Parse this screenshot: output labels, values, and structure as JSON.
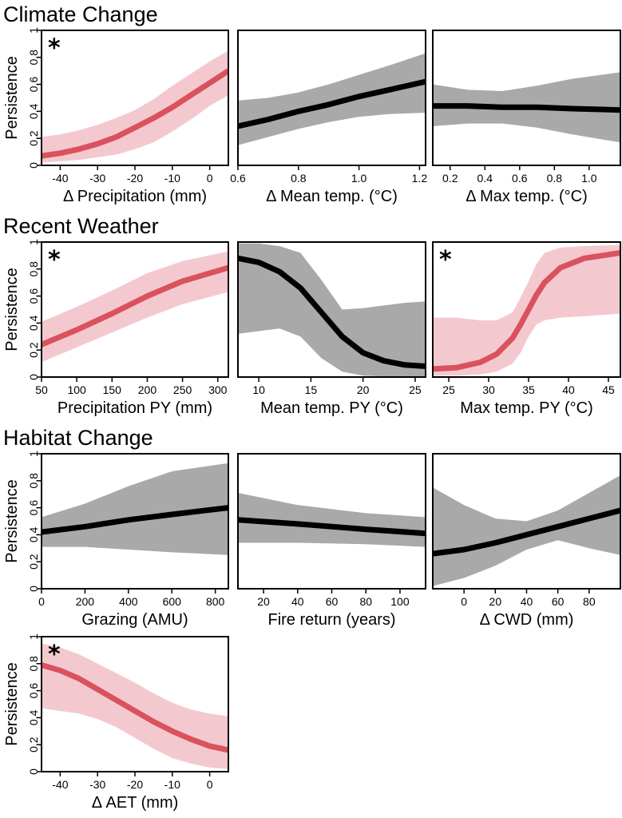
{
  "colors": {
    "significant": "#d9525e",
    "significant_band": "#f3c9cf",
    "neutral": "#000000",
    "neutral_band": "#a9a9a9"
  },
  "sections": [
    {
      "title": "Climate Change"
    },
    {
      "title": "Recent Weather"
    },
    {
      "title": "Habitat Change"
    }
  ],
  "chart_data": [
    {
      "type": "line",
      "xlabel": "Δ Precipitation (mm)",
      "ylabel": "Persistence",
      "significant": true,
      "marker": "*",
      "xlim": [
        -45,
        5
      ],
      "ylim": [
        0,
        1
      ],
      "xticks": [
        -40,
        -30,
        -20,
        -10,
        0
      ],
      "xtick_labels": [
        "-40",
        "-30",
        "-20",
        "-10",
        "0"
      ],
      "yticks": [
        0,
        0.2,
        0.4,
        0.6,
        0.8,
        1
      ],
      "ytick_labels": [
        "0",
        "0.2",
        "0.4",
        "0.6",
        "0.8",
        "1"
      ],
      "x": [
        -45,
        -40,
        -35,
        -30,
        -25,
        -20,
        -15,
        -10,
        -5,
        0,
        5
      ],
      "fit": [
        0.07,
        0.09,
        0.12,
        0.16,
        0.21,
        0.28,
        0.35,
        0.43,
        0.52,
        0.61,
        0.7
      ],
      "lower": [
        0.02,
        0.03,
        0.04,
        0.06,
        0.08,
        0.12,
        0.17,
        0.25,
        0.34,
        0.44,
        0.52
      ],
      "upper": [
        0.21,
        0.23,
        0.26,
        0.3,
        0.35,
        0.41,
        0.49,
        0.59,
        0.68,
        0.77,
        0.85
      ]
    },
    {
      "type": "line",
      "xlabel": "Δ Mean temp. (°C)",
      "ylabel": "",
      "significant": false,
      "marker": "",
      "xlim": [
        0.6,
        1.22
      ],
      "ylim": [
        0,
        1
      ],
      "xticks": [
        0.6,
        0.8,
        1.0,
        1.2
      ],
      "xtick_labels": [
        "0.6",
        "0.8",
        "1.0",
        "1.2"
      ],
      "yticks": [],
      "ytick_labels": [],
      "x": [
        0.6,
        0.7,
        0.8,
        0.9,
        1.0,
        1.1,
        1.22
      ],
      "fit": [
        0.29,
        0.34,
        0.4,
        0.45,
        0.51,
        0.56,
        0.62
      ],
      "lower": [
        0.15,
        0.21,
        0.27,
        0.32,
        0.36,
        0.38,
        0.39
      ],
      "upper": [
        0.48,
        0.5,
        0.54,
        0.6,
        0.67,
        0.74,
        0.83
      ]
    },
    {
      "type": "line",
      "xlabel": "Δ Max temp. (°C)",
      "ylabel": "",
      "significant": false,
      "marker": "",
      "xlim": [
        0.1,
        1.18
      ],
      "ylim": [
        0,
        1
      ],
      "xticks": [
        0.2,
        0.4,
        0.6,
        0.8,
        1.0
      ],
      "xtick_labels": [
        "0.2",
        "0.4",
        "0.6",
        "0.8",
        "1.0"
      ],
      "yticks": [],
      "ytick_labels": [],
      "x": [
        0.1,
        0.3,
        0.5,
        0.7,
        0.9,
        1.18
      ],
      "fit": [
        0.44,
        0.44,
        0.43,
        0.43,
        0.42,
        0.41
      ],
      "lower": [
        0.29,
        0.31,
        0.31,
        0.28,
        0.23,
        0.17
      ],
      "upper": [
        0.6,
        0.56,
        0.55,
        0.59,
        0.64,
        0.69
      ]
    },
    {
      "type": "line",
      "xlabel": "Precipitation PY (mm)",
      "ylabel": "Persistence",
      "significant": true,
      "marker": "*",
      "xlim": [
        50,
        315
      ],
      "ylim": [
        0,
        1
      ],
      "xticks": [
        50,
        100,
        150,
        200,
        250,
        300
      ],
      "xtick_labels": [
        "50",
        "100",
        "150",
        "200",
        "250",
        "300"
      ],
      "yticks": [
        0,
        0.2,
        0.4,
        0.6,
        0.8,
        1
      ],
      "ytick_labels": [
        "0",
        "0.2",
        "0.4",
        "0.6",
        "0.8",
        "1"
      ],
      "x": [
        50,
        100,
        150,
        200,
        250,
        315
      ],
      "fit": [
        0.24,
        0.35,
        0.47,
        0.6,
        0.71,
        0.81
      ],
      "lower": [
        0.11,
        0.22,
        0.33,
        0.44,
        0.54,
        0.63
      ],
      "upper": [
        0.41,
        0.52,
        0.64,
        0.77,
        0.86,
        0.93
      ]
    },
    {
      "type": "line",
      "xlabel": "Mean temp. PY (°C)",
      "ylabel": "",
      "significant": false,
      "marker": "",
      "xlim": [
        8,
        26
      ],
      "ylim": [
        0,
        1
      ],
      "xticks": [
        10,
        15,
        20,
        25
      ],
      "xtick_labels": [
        "10",
        "15",
        "20",
        "25"
      ],
      "yticks": [],
      "ytick_labels": [],
      "x": [
        8,
        10,
        12,
        14,
        16,
        18,
        20,
        22,
        24,
        26
      ],
      "fit": [
        0.88,
        0.85,
        0.78,
        0.66,
        0.48,
        0.3,
        0.18,
        0.12,
        0.09,
        0.08
      ],
      "lower": [
        0.32,
        0.34,
        0.36,
        0.3,
        0.14,
        0.04,
        0.01,
        0.005,
        0.005,
        0.005
      ],
      "upper": [
        0.99,
        0.99,
        0.97,
        0.92,
        0.72,
        0.5,
        0.51,
        0.53,
        0.55,
        0.56
      ]
    },
    {
      "type": "line",
      "xlabel": "Max temp. PY (°C)",
      "ylabel": "",
      "significant": true,
      "marker": "*",
      "xlim": [
        23,
        46.5
      ],
      "ylim": [
        0,
        1
      ],
      "xticks": [
        25,
        30,
        35,
        40,
        45
      ],
      "xtick_labels": [
        "25",
        "30",
        "35",
        "40",
        "45"
      ],
      "yticks": [],
      "ytick_labels": [],
      "x": [
        23,
        26,
        29,
        31,
        33,
        34,
        35,
        36,
        37,
        39,
        42,
        46.5
      ],
      "fit": [
        0.06,
        0.07,
        0.11,
        0.17,
        0.29,
        0.39,
        0.5,
        0.61,
        0.7,
        0.81,
        0.88,
        0.92
      ],
      "lower": [
        0.01,
        0.01,
        0.02,
        0.04,
        0.1,
        0.18,
        0.3,
        0.39,
        0.42,
        0.44,
        0.45,
        0.47
      ],
      "upper": [
        0.44,
        0.44,
        0.42,
        0.42,
        0.48,
        0.59,
        0.71,
        0.84,
        0.92,
        0.96,
        0.97,
        0.98
      ]
    },
    {
      "type": "line",
      "xlabel": "Grazing (AMU)",
      "ylabel": "Persistence",
      "significant": false,
      "marker": "",
      "xlim": [
        0,
        860
      ],
      "ylim": [
        0,
        1
      ],
      "xticks": [
        0,
        200,
        400,
        600,
        800
      ],
      "xtick_labels": [
        "0",
        "200",
        "400",
        "600",
        "800"
      ],
      "yticks": [
        0,
        0.2,
        0.4,
        0.6,
        0.8,
        1
      ],
      "ytick_labels": [
        "0",
        "0.2",
        "0.4",
        "0.6",
        "0.8",
        "1"
      ],
      "x": [
        0,
        200,
        400,
        600,
        860
      ],
      "fit": [
        0.42,
        0.46,
        0.51,
        0.55,
        0.6
      ],
      "lower": [
        0.31,
        0.31,
        0.29,
        0.27,
        0.25
      ],
      "upper": [
        0.53,
        0.63,
        0.76,
        0.87,
        0.93
      ]
    },
    {
      "type": "line",
      "xlabel": "Fire return (years)",
      "ylabel": "",
      "significant": false,
      "marker": "",
      "xlim": [
        5,
        115
      ],
      "ylim": [
        0,
        1
      ],
      "xticks": [
        20,
        40,
        60,
        80,
        100
      ],
      "xtick_labels": [
        "20",
        "40",
        "60",
        "80",
        "100"
      ],
      "yticks": [],
      "ytick_labels": [],
      "x": [
        5,
        40,
        80,
        115
      ],
      "fit": [
        0.51,
        0.48,
        0.44,
        0.41
      ],
      "lower": [
        0.34,
        0.34,
        0.33,
        0.31
      ],
      "upper": [
        0.71,
        0.62,
        0.56,
        0.53
      ]
    },
    {
      "type": "line",
      "xlabel": "Δ CWD (mm)",
      "ylabel": "",
      "significant": false,
      "marker": "",
      "xlim": [
        -20,
        100
      ],
      "ylim": [
        0,
        1
      ],
      "xticks": [
        0,
        20,
        40,
        60,
        80
      ],
      "xtick_labels": [
        "0",
        "20",
        "40",
        "60",
        "80"
      ],
      "yticks": [],
      "ytick_labels": [],
      "x": [
        -20,
        0,
        20,
        40,
        60,
        80,
        100
      ],
      "fit": [
        0.26,
        0.29,
        0.34,
        0.4,
        0.46,
        0.52,
        0.58
      ],
      "lower": [
        0.02,
        0.08,
        0.17,
        0.29,
        0.36,
        0.3,
        0.25
      ],
      "upper": [
        0.75,
        0.62,
        0.52,
        0.5,
        0.58,
        0.71,
        0.84
      ]
    },
    {
      "type": "line",
      "xlabel": "Δ AET (mm)",
      "ylabel": "Persistence",
      "significant": true,
      "marker": "*",
      "xlim": [
        -45,
        5
      ],
      "ylim": [
        0,
        1
      ],
      "xticks": [
        -40,
        -30,
        -20,
        -10,
        0
      ],
      "xtick_labels": [
        "-40",
        "-30",
        "-20",
        "-10",
        "0"
      ],
      "yticks": [
        0,
        0.2,
        0.4,
        0.6,
        0.8,
        1
      ],
      "ytick_labels": [
        "0",
        "0.2",
        "0.4",
        "0.6",
        "0.8",
        "1"
      ],
      "x": [
        -45,
        -40,
        -35,
        -30,
        -25,
        -20,
        -15,
        -10,
        -5,
        0,
        5
      ],
      "fit": [
        0.79,
        0.75,
        0.69,
        0.61,
        0.53,
        0.45,
        0.37,
        0.3,
        0.24,
        0.19,
        0.16
      ],
      "lower": [
        0.47,
        0.45,
        0.43,
        0.39,
        0.33,
        0.25,
        0.17,
        0.1,
        0.06,
        0.03,
        0.02
      ],
      "upper": [
        0.95,
        0.92,
        0.87,
        0.8,
        0.73,
        0.66,
        0.58,
        0.51,
        0.46,
        0.43,
        0.41
      ]
    }
  ]
}
